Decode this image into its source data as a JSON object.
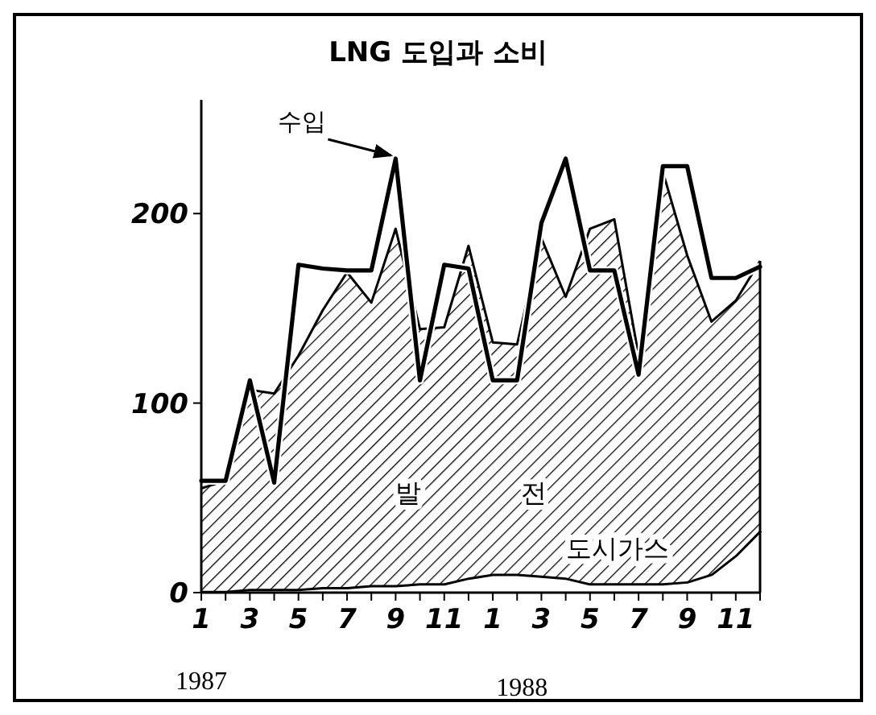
{
  "chart_data": {
    "type": "area",
    "title": "LNG 도입과 소비",
    "stacked": true,
    "categories": [
      "1",
      null,
      "3",
      null,
      "5",
      null,
      "7",
      null,
      "9",
      null,
      "11",
      null,
      "1",
      null,
      "3",
      null,
      "5",
      null,
      "7",
      null,
      "9",
      null,
      "11",
      null
    ],
    "series": [
      {
        "name": "도시가스",
        "type": "area",
        "color": "#000000",
        "values": [
          1,
          1,
          2,
          2,
          2,
          3,
          3,
          4,
          4,
          5,
          5,
          8,
          10,
          10,
          9,
          8,
          5,
          5,
          5,
          5,
          6,
          10,
          20,
          33
        ]
      },
      {
        "name": "발전",
        "type": "area",
        "color": "#000000",
        "values": [
          54,
          58,
          105,
          103,
          123,
          146,
          166,
          149,
          188,
          134,
          135,
          175,
          122,
          121,
          178,
          148,
          187,
          192,
          120,
          217,
          172,
          133,
          134,
          142
        ]
      },
      {
        "name": "수입",
        "type": "line",
        "color": "#000000",
        "values": [
          59,
          59,
          112,
          58,
          173,
          171,
          170,
          170,
          229,
          112,
          173,
          171,
          112,
          112,
          195,
          229,
          170,
          170,
          115,
          225,
          225,
          166,
          166,
          172
        ]
      }
    ],
    "ylim": [
      0,
      260
    ],
    "yticks": [
      0,
      100,
      200
    ],
    "grid": false,
    "legend": false,
    "annotations": [
      "1987",
      "1988"
    ]
  }
}
